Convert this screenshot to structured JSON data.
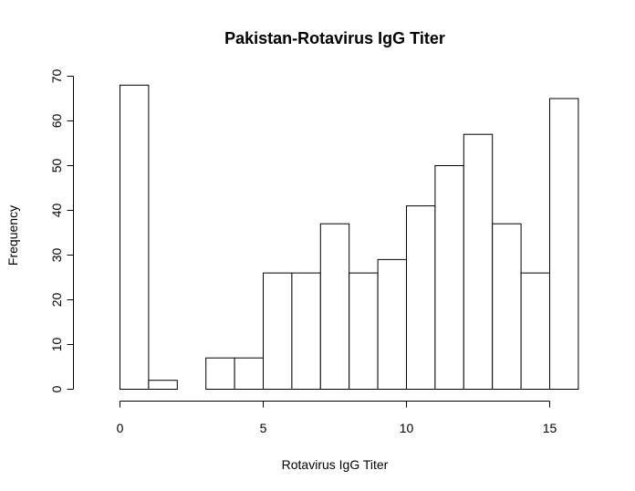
{
  "chart_data": {
    "type": "bar",
    "title": "Pakistan-Rotavirus IgG Titer",
    "xlabel": "Rotavirus IgG Titer",
    "ylabel": "Frequency",
    "bins": [
      [
        0,
        1
      ],
      [
        1,
        2
      ],
      [
        2,
        3
      ],
      [
        3,
        4
      ],
      [
        4,
        5
      ],
      [
        5,
        6
      ],
      [
        6,
        7
      ],
      [
        7,
        8
      ],
      [
        8,
        9
      ],
      [
        9,
        10
      ],
      [
        10,
        11
      ],
      [
        11,
        12
      ],
      [
        12,
        13
      ],
      [
        13,
        14
      ],
      [
        14,
        15
      ],
      [
        15,
        16
      ]
    ],
    "values": [
      68,
      2,
      0,
      7,
      7,
      26,
      26,
      37,
      26,
      29,
      41,
      50,
      57,
      37,
      26,
      65
    ],
    "xlim": [
      0,
      16
    ],
    "ylim": [
      0,
      70
    ],
    "xticks": [
      0,
      5,
      10,
      15
    ],
    "yticks": [
      0,
      10,
      20,
      30,
      40,
      50,
      60,
      70
    ],
    "grid": false
  }
}
